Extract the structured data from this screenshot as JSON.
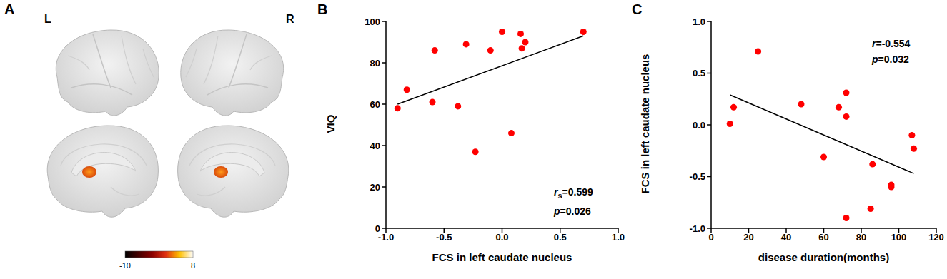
{
  "chart_data": [
    {
      "title": "A",
      "type": "brain_map",
      "labels": [
        "L",
        "R"
      ],
      "colorbar": {
        "range": [
          -10,
          8
        ],
        "ticks": [
          -10,
          8
        ]
      }
    },
    {
      "title": "B",
      "type": "scatter",
      "x_label": "FCS in left caudate nucleus",
      "y_label": "VIQ",
      "color": "#ff0000",
      "x": [
        -0.9,
        -0.82,
        -0.6,
        -0.58,
        -0.38,
        -0.31,
        -0.23,
        -0.1,
        0.0,
        0.08,
        0.16,
        0.17,
        0.2,
        0.7
      ],
      "values": [
        58,
        67,
        61,
        86,
        59,
        89,
        37,
        86,
        95,
        46,
        94,
        87,
        90,
        95
      ],
      "fit_line": {
        "x": [
          -0.9,
          0.7
        ],
        "y": [
          60,
          93
        ]
      },
      "xlim": [
        -1,
        1
      ],
      "xticks": [
        {
          "value": -1,
          "label": "-1.0"
        },
        {
          "value": -0.5,
          "label": "-0.5"
        },
        {
          "value": 0,
          "label": "0.0"
        },
        {
          "value": 0.5,
          "label": "0.5"
        },
        {
          "value": 1,
          "label": "1.0"
        }
      ],
      "ylim": [
        0,
        100
      ],
      "yticks": [
        0,
        20,
        40,
        60,
        80,
        100
      ],
      "annotations": [
        "rs=0.599",
        "p=0.026"
      ],
      "grid": false
    },
    {
      "title": "C",
      "type": "scatter",
      "x_label": "disease duration(months)",
      "y_label": "FCS in left caudate nucleus",
      "color": "#ff0000",
      "x": [
        10,
        12,
        25,
        48,
        60,
        68,
        72,
        72,
        72,
        85,
        86,
        96,
        96,
        107,
        108
      ],
      "values": [
        0.01,
        0.17,
        0.71,
        0.2,
        -0.31,
        0.17,
        0.31,
        0.08,
        -0.9,
        -0.81,
        -0.38,
        -0.58,
        -0.6,
        -0.1,
        -0.23
      ],
      "fit_line": {
        "x": [
          10,
          108
        ],
        "y": [
          0.29,
          -0.47
        ]
      },
      "xlim": [
        0,
        120
      ],
      "xticks": [
        0,
        20,
        40,
        60,
        80,
        100,
        120
      ],
      "ylim": [
        -1,
        1
      ],
      "yticks": [
        {
          "value": -1,
          "label": "-1.0"
        },
        {
          "value": -0.5,
          "label": "-0.5"
        },
        {
          "value": 0,
          "label": "0.0"
        },
        {
          "value": 0.5,
          "label": "0.5"
        },
        {
          "value": 1,
          "label": "1.0"
        }
      ],
      "annotations": [
        "r=-0.554",
        "p=0.032"
      ],
      "grid": false
    }
  ]
}
